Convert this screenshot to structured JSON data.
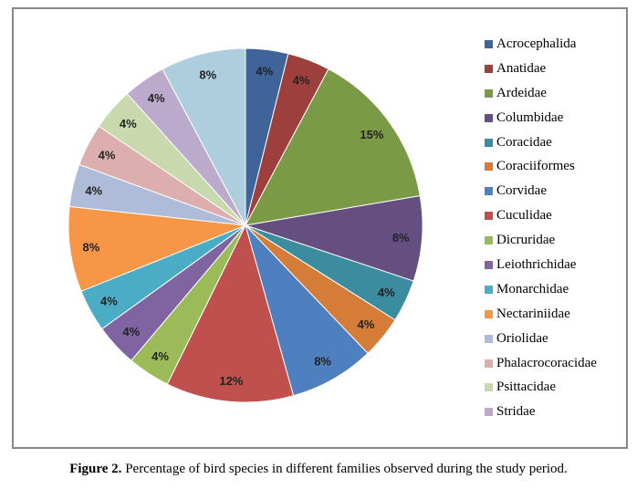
{
  "chart_data": {
    "type": "pie",
    "title": "",
    "legend_position": "right",
    "slices": [
      {
        "name": "Acrocephalida",
        "value": 4,
        "label": "4%",
        "color": "#3F6499"
      },
      {
        "name": "Anatidae",
        "value": 4,
        "label": "4%",
        "color": "#9C3F3D"
      },
      {
        "name": "Ardeidae",
        "value": 15,
        "label": "15%",
        "color": "#7B9A45"
      },
      {
        "name": "Columbidae",
        "value": 8,
        "label": "8%",
        "color": "#654F81"
      },
      {
        "name": "Coracidae",
        "value": 4,
        "label": "4%",
        "color": "#3A8C9E"
      },
      {
        "name": "Coraciiformes",
        "value": 4,
        "label": "4%",
        "color": "#D47C38"
      },
      {
        "name": "Corvidae",
        "value": 8,
        "label": "8%",
        "color": "#4E7FBE"
      },
      {
        "name": "Cuculidae",
        "value": 12,
        "label": "12%",
        "color": "#C0504D"
      },
      {
        "name": "Dicruridae",
        "value": 4,
        "label": "4%",
        "color": "#9BBB59"
      },
      {
        "name": "Leiothrichidae",
        "value": 4,
        "label": "4%",
        "color": "#8064A2"
      },
      {
        "name": "Monarchidae",
        "value": 4,
        "label": "4%",
        "color": "#4BACC6"
      },
      {
        "name": "Nectariniidae",
        "value": 8,
        "label": "8%",
        "color": "#F79646"
      },
      {
        "name": "Oriolidae",
        "value": 4,
        "label": "4%",
        "color": "#AFBCD9"
      },
      {
        "name": "Phalacrocoracidae",
        "value": 4,
        "label": "4%",
        "color": "#DCAEAD"
      },
      {
        "name": "Psittacidae",
        "value": 4,
        "label": "4%",
        "color": "#C8D9AE"
      },
      {
        "name": "Stridae",
        "value": 4,
        "label": "4%",
        "color": "#BCAACD"
      },
      {
        "name": "",
        "value": 8,
        "label": "8%",
        "color": "#AECEDE"
      }
    ]
  },
  "caption": {
    "prefix": "Figure 2.",
    "text": " Percentage of bird species in different families observed during the study period."
  }
}
